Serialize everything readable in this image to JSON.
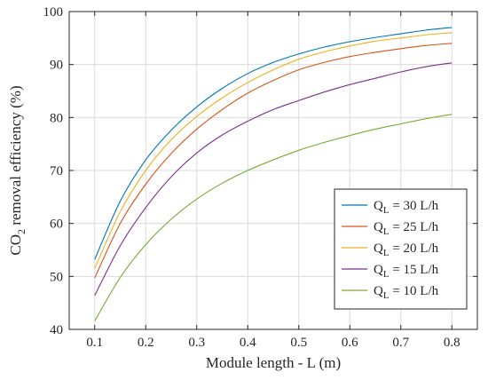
{
  "chart_data": {
    "type": "line",
    "xlabel": "Module length - L (m)",
    "ylabel_parts": {
      "pre": "CO",
      "sub": "2",
      "post": " removal efficiency (%)"
    },
    "xlim": [
      0.05,
      0.85
    ],
    "ylim": [
      40,
      100
    ],
    "xticks": [
      0.1,
      0.2,
      0.3,
      0.4,
      0.5,
      0.6,
      0.7,
      0.8
    ],
    "xtick_labels": [
      "0.1",
      "0.2",
      "0.3",
      "0.4",
      "0.5",
      "0.6",
      "0.7",
      "0.8"
    ],
    "yticks": [
      40,
      50,
      60,
      70,
      80,
      90,
      100
    ],
    "ytick_labels": [
      "40",
      "50",
      "60",
      "70",
      "80",
      "90",
      "100"
    ],
    "grid": true,
    "legend_position": "lower-right",
    "x": [
      0.1,
      0.15,
      0.2,
      0.25,
      0.3,
      0.35,
      0.4,
      0.45,
      0.5,
      0.55,
      0.6,
      0.65,
      0.7,
      0.75,
      0.8
    ],
    "series": [
      {
        "legend_label": {
          "sym": "Q",
          "sub": "L",
          "rest": " = 30 L/h"
        },
        "color": "#0072BD",
        "values": [
          53.2,
          64.2,
          72.0,
          77.6,
          82.0,
          85.5,
          88.3,
          90.4,
          92.0,
          93.3,
          94.3,
          95.1,
          95.8,
          96.5,
          97.0
        ]
      },
      {
        "legend_label": {
          "sym": "Q",
          "sub": "L",
          "rest": " = 25 L/h"
        },
        "color": "#D95319",
        "values": [
          49.7,
          60.0,
          67.4,
          73.2,
          77.8,
          81.5,
          84.6,
          87.0,
          89.0,
          90.4,
          91.5,
          92.3,
          93.0,
          93.6,
          94.0
        ]
      },
      {
        "legend_label": {
          "sym": "Q",
          "sub": "L",
          "rest": " = 20 L/h"
        },
        "color": "#EDB120",
        "values": [
          51.5,
          62.2,
          70.0,
          75.8,
          80.2,
          83.7,
          86.6,
          89.0,
          91.0,
          92.4,
          93.5,
          94.4,
          95.0,
          95.6,
          96.0
        ]
      },
      {
        "legend_label": {
          "sym": "Q",
          "sub": "L",
          "rest": " = 15 L/h"
        },
        "color": "#7E2F8E",
        "values": [
          46.4,
          55.8,
          63.0,
          68.8,
          73.3,
          76.7,
          79.3,
          81.5,
          83.2,
          84.8,
          86.2,
          87.4,
          88.6,
          89.6,
          90.3
        ]
      },
      {
        "legend_label": {
          "sym": "Q",
          "sub": "L",
          "rest": " = 10 L/h"
        },
        "color": "#77AC30",
        "values": [
          41.6,
          49.8,
          56.0,
          60.8,
          64.6,
          67.6,
          70.0,
          72.0,
          73.8,
          75.3,
          76.6,
          77.8,
          78.8,
          79.8,
          80.6
        ]
      }
    ]
  }
}
